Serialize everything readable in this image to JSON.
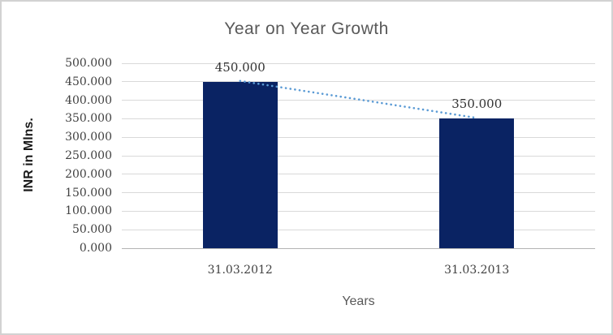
{
  "chart_data": {
    "type": "bar",
    "title": "Year on Year Growth",
    "xlabel": "Years",
    "ylabel": "INR in Mlns.",
    "categories": [
      "31.03.2012",
      "31.03.2013"
    ],
    "series": [
      {
        "name": "INR in Mlns.",
        "values": [
          450,
          350
        ]
      }
    ],
    "data_labels": [
      "450.000",
      "350.000"
    ],
    "ylim": [
      0,
      500
    ],
    "ytick_step": 50,
    "ytick_labels": [
      "500.000",
      "450.000",
      "400.000",
      "350.000",
      "300.000",
      "250.000",
      "200.000",
      "150.000",
      "100.000",
      "50.000",
      "0.000"
    ],
    "grid": true,
    "legend": "none",
    "trendline": {
      "style": "dotted",
      "color": "#5B9BD5",
      "points": [
        450,
        350
      ]
    },
    "colors": {
      "bar": "#0A2363",
      "gridline": "#D9D9D9",
      "axis_line": "#B3B3B3",
      "title": "#595959",
      "tick": "#404040",
      "data_label": "#333333",
      "frame_border": "#D2D2D2"
    }
  }
}
